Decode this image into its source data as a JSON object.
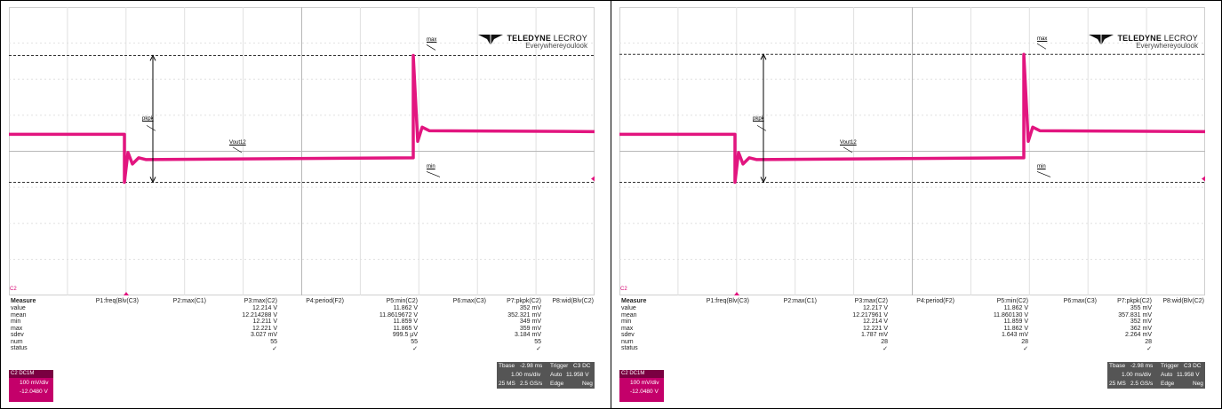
{
  "panels": [
    {
      "id": "left",
      "logo": {
        "brand_bold": "TELEDYNE",
        "brand_light": " LECROY",
        "tagline": "Everywhereyoulook"
      },
      "labels": {
        "pkpk": "pkpk",
        "max": "max",
        "vout": "Vout12",
        "min": "min",
        "c2": "C2"
      },
      "measure": {
        "title": "Measure",
        "row_labels": [
          "value",
          "mean",
          "min",
          "max",
          "sdev",
          "num",
          "status"
        ],
        "columns": [
          {
            "header": "P1:freq(Blv(C3)",
            "values": [
              "",
              "",
              "",
              "",
              "",
              "",
              ""
            ]
          },
          {
            "header": "P2:max(C1)",
            "values": [
              "",
              "",
              "",
              "",
              "",
              "",
              ""
            ]
          },
          {
            "header": "P3:max(C2)",
            "values": [
              "12.214 V",
              "12.214288 V",
              "12.211 V",
              "12.221 V",
              "3.027 mV",
              "55",
              "✓"
            ]
          },
          {
            "header": "P4:period(F2)",
            "values": [
              "",
              "",
              "",
              "",
              "",
              "",
              ""
            ]
          },
          {
            "header": "P5:min(C2)",
            "values": [
              "11.862 V",
              "11.8619672 V",
              "11.859 V",
              "11.865 V",
              "999.5 µV",
              "55",
              "✓"
            ]
          },
          {
            "header": "P6:max(C3)",
            "values": [
              "",
              "",
              "",
              "",
              "",
              "",
              ""
            ]
          },
          {
            "header": "P7:pkpk(C2)",
            "values": [
              "352 mV",
              "352.321 mV",
              "349 mV",
              "359 mV",
              "3.184 mV",
              "55",
              "✓"
            ]
          },
          {
            "header": "P8:wid(Blv(C2)",
            "values": [
              "",
              "",
              "",
              "",
              "",
              "",
              ""
            ]
          }
        ]
      },
      "channel": {
        "name": "C2 DC1M",
        "scale": "100 mV/div",
        "offset": "-12.0480 V"
      },
      "timebase": {
        "tbase_label": "Tbase",
        "tbase_val": "-2.98 ms",
        "trigger_label": "Trigger",
        "trigger_ch": "C3 DC",
        "tdiv": "1.00 ms/div",
        "mode": "Auto",
        "level": "11.958 V",
        "samples": "25 MS",
        "rate": "2.5 GS/s",
        "edge": "Edge",
        "slope": "Neg"
      },
      "wave": {
        "pre_level": 11.995,
        "dip_min": 11.862,
        "mid_level": 11.925,
        "rise_max": 12.214,
        "post_level": 12.005
      }
    },
    {
      "id": "right",
      "logo": {
        "brand_bold": "TELEDYNE",
        "brand_light": " LECROY",
        "tagline": "Everywhereyoulook"
      },
      "labels": {
        "pkpk": "pkpk",
        "max": "max",
        "vout": "Vout12",
        "min": "min",
        "c2": "C2"
      },
      "measure": {
        "title": "Measure",
        "row_labels": [
          "value",
          "mean",
          "min",
          "max",
          "sdev",
          "num",
          "status"
        ],
        "columns": [
          {
            "header": "P1:freq(Blv(C3)",
            "values": [
              "",
              "",
              "",
              "",
              "",
              "",
              ""
            ]
          },
          {
            "header": "P2:max(C1)",
            "values": [
              "",
              "",
              "",
              "",
              "",
              "",
              ""
            ]
          },
          {
            "header": "P3:max(C2)",
            "values": [
              "12.217 V",
              "12.217961 V",
              "12.214 V",
              "12.221 V",
              "1.787 mV",
              "28",
              "✓"
            ]
          },
          {
            "header": "P4:period(F2)",
            "values": [
              "",
              "",
              "",
              "",
              "",
              "",
              ""
            ]
          },
          {
            "header": "P5:min(C2)",
            "values": [
              "11.862 V",
              "11.860130 V",
              "11.859 V",
              "11.862 V",
              "1.643 mV",
              "28",
              "✓"
            ]
          },
          {
            "header": "P6:max(C3)",
            "values": [
              "",
              "",
              "",
              "",
              "",
              "",
              ""
            ]
          },
          {
            "header": "P7:pkpk(C2)",
            "values": [
              "355 mV",
              "357.831 mV",
              "352 mV",
              "362 mV",
              "2.264 mV",
              "28",
              "✓"
            ]
          },
          {
            "header": "P8:wid(Blv(C2)",
            "values": [
              "",
              "",
              "",
              "",
              "",
              "",
              ""
            ]
          }
        ]
      },
      "channel": {
        "name": "C2 DC1M",
        "scale": "100 mV/div",
        "offset": "-12.0480 V"
      },
      "timebase": {
        "tbase_label": "Tbase",
        "tbase_val": "-2.98 ms",
        "trigger_label": "Trigger",
        "trigger_ch": "C3 DC",
        "tdiv": "1.00 ms/div",
        "mode": "Auto",
        "level": "11.958 V",
        "samples": "25 MS",
        "rate": "2.5 GS/s",
        "edge": "Edge",
        "slope": "Neg"
      },
      "wave": {
        "pre_level": 11.995,
        "dip_min": 11.862,
        "mid_level": 11.925,
        "rise_max": 12.217,
        "post_level": 12.005
      }
    }
  ]
}
